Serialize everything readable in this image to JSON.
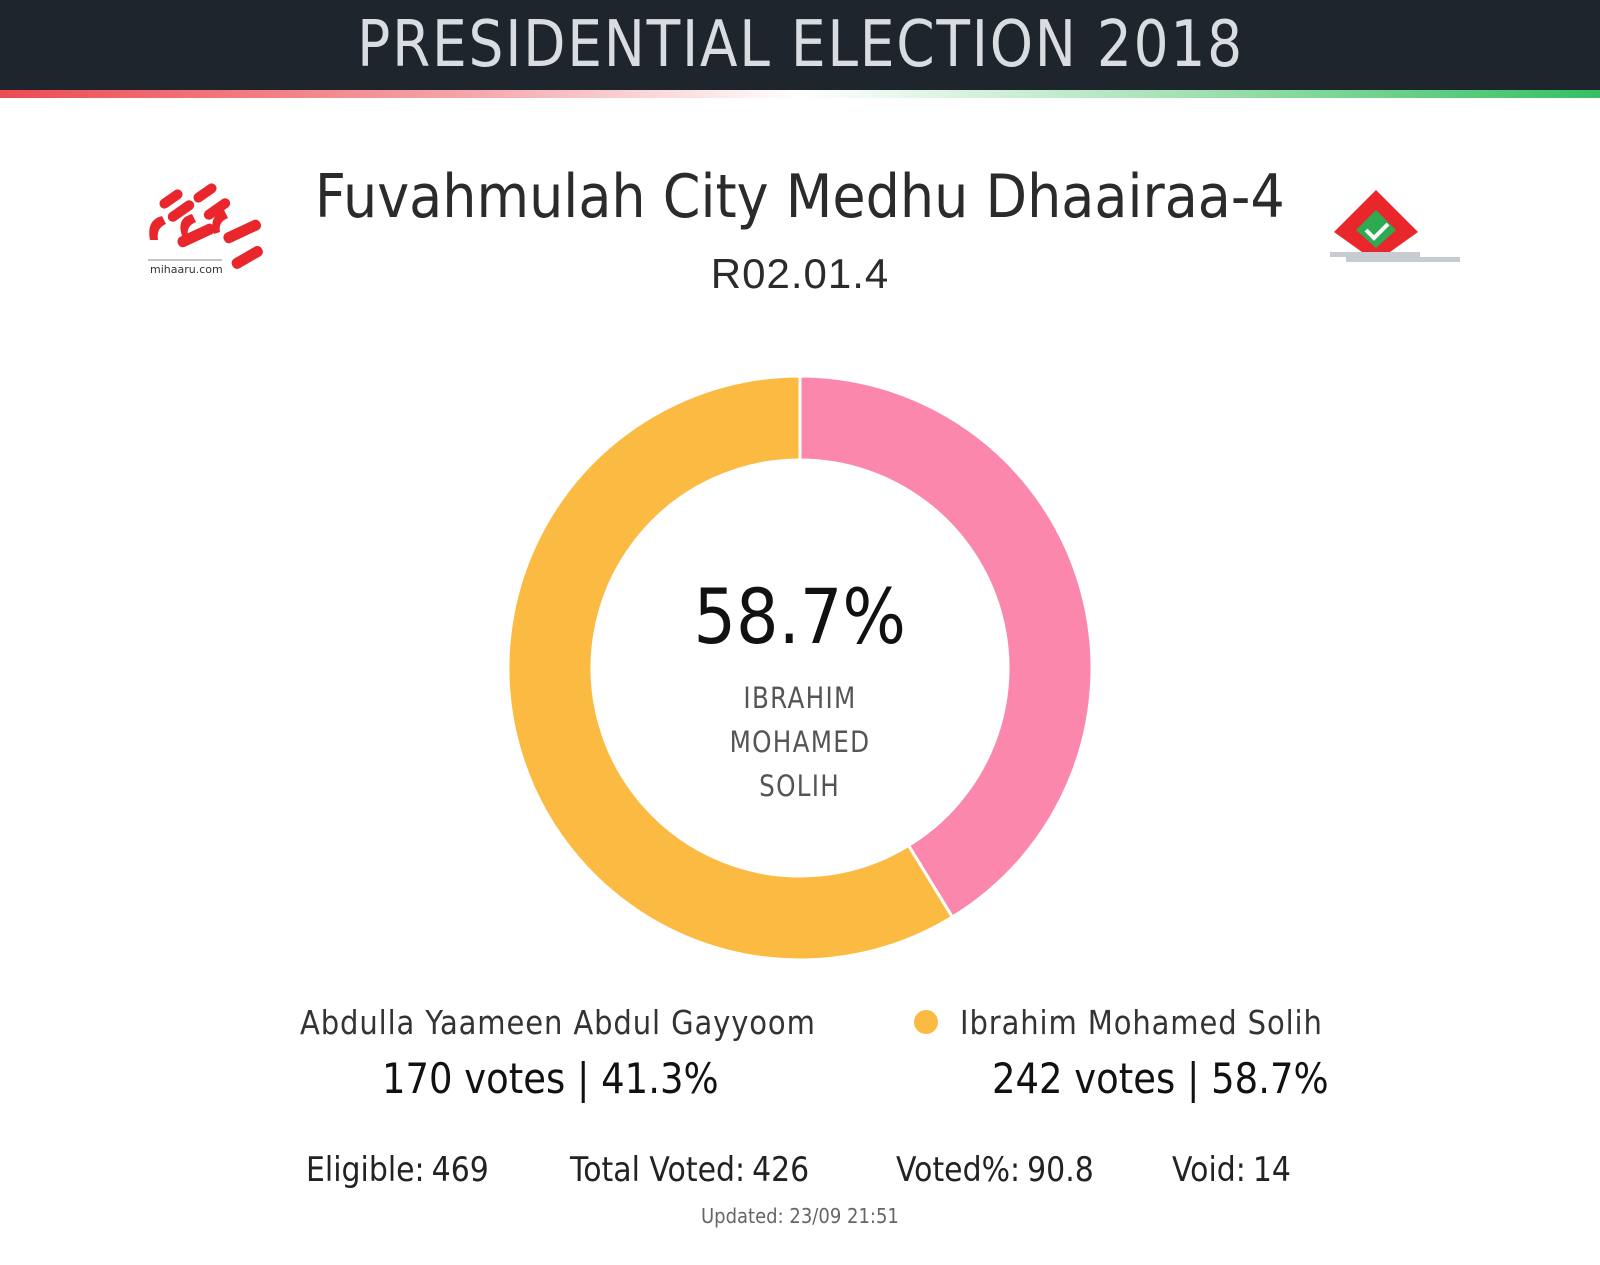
{
  "header": {
    "title": "PRESIDENTIAL ELECTION 2018"
  },
  "constituency": {
    "name": "Fuvahmulah City Medhu Dhaairaa-4",
    "code": "R02.01.4"
  },
  "logos": {
    "left_text": "mihaaru.com",
    "left_color": "#e8262c",
    "right_color_red": "#e8262c",
    "right_color_green": "#2eaa52"
  },
  "center": {
    "percent": "58.7%",
    "name_line1": "IBRAHIM MOHAMED",
    "name_line2": "SOLIH"
  },
  "chart_data": {
    "type": "pie",
    "style": "donut",
    "series": [
      {
        "name": "Abdulla Yaameen Abdul Gayyoom",
        "votes": 170,
        "percent": 41.3,
        "color": "#fb88ac",
        "votes_label": "170 votes | 41.3%"
      },
      {
        "name": "Ibrahim Mohamed Solih",
        "votes": 242,
        "percent": 58.7,
        "color": "#fbbb42",
        "votes_label": "242 votes | 58.7%"
      }
    ]
  },
  "stats": {
    "eligible_label": "Eligible:",
    "eligible": "469",
    "total_voted_label": "Total Voted:",
    "total_voted": "426",
    "voted_pct_label": "Voted%:",
    "voted_pct": "90.8",
    "void_label": "Void:",
    "void": "14"
  },
  "updated": "Updated: 23/09 21:51"
}
